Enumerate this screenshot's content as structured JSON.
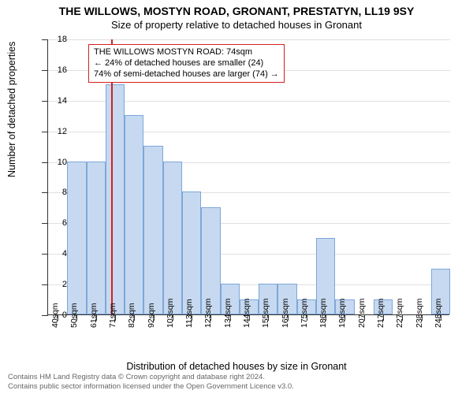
{
  "title": "THE WILLOWS, MOSTYN ROAD, GRONANT, PRESTATYN, LL19 9SY",
  "subtitle": "Size of property relative to detached houses in Gronant",
  "chart": {
    "type": "histogram",
    "ylabel": "Number of detached properties",
    "xlabel": "Distribution of detached houses by size in Gronant",
    "ylim": [
      0,
      18
    ],
    "ytick_step": 2,
    "bar_fill": "#c6d9f0",
    "bar_border": "#7da7d9",
    "grid_color": "#e0e0e0",
    "axis_color": "#333333",
    "background_color": "#ffffff",
    "label_fontsize": 12.5,
    "tick_fontsize": 11,
    "x_categories": [
      "40sqm",
      "50sqm",
      "61sqm",
      "71sqm",
      "82sqm",
      "92sqm",
      "103sqm",
      "113sqm",
      "123sqm",
      "134sqm",
      "144sqm",
      "155sqm",
      "165sqm",
      "175sqm",
      "186sqm",
      "196sqm",
      "207sqm",
      "217sqm",
      "227sqm",
      "238sqm",
      "248sqm"
    ],
    "values": [
      0,
      10,
      10,
      15,
      13,
      11,
      10,
      8,
      7,
      2,
      1,
      2,
      2,
      1,
      5,
      1,
      0,
      1,
      0,
      0,
      3
    ],
    "marker": {
      "position_category_index": 3,
      "color": "#d32020"
    }
  },
  "legend": {
    "border_color": "#d32020",
    "line1": "THE WILLOWS MOSTYN ROAD: 74sqm",
    "line2": "← 24% of detached houses are smaller (24)",
    "line3": "74% of semi-detached houses are larger (74) →"
  },
  "footer": {
    "line1": "Contains HM Land Registry data © Crown copyright and database right 2024.",
    "line2": "Contains public sector information licensed under the Open Government Licence v3.0."
  }
}
